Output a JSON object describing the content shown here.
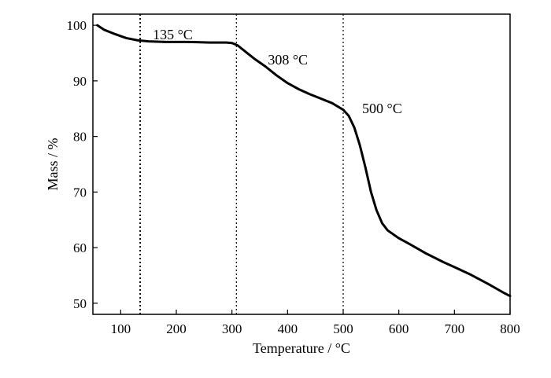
{
  "chart_data": {
    "type": "line",
    "title": "",
    "xlabel": "Temperature / °C",
    "ylabel": "Mass / %",
    "xlim": [
      50,
      800
    ],
    "ylim": [
      48,
      102
    ],
    "xticks": [
      100,
      200,
      300,
      400,
      500,
      600,
      700,
      800
    ],
    "yticks": [
      50,
      60,
      70,
      80,
      90,
      100
    ],
    "grid": false,
    "legend": "none",
    "series": [
      {
        "color": "#000000",
        "x": [
          58,
          70,
          90,
          110,
          130,
          150,
          180,
          220,
          260,
          290,
          300,
          310,
          320,
          340,
          360,
          380,
          400,
          420,
          440,
          460,
          480,
          500,
          510,
          520,
          530,
          540,
          550,
          560,
          570,
          580,
          600,
          620,
          650,
          680,
          700,
          730,
          760,
          790,
          800
        ],
        "y": [
          100.0,
          99.2,
          98.4,
          97.7,
          97.3,
          97.1,
          97.0,
          97.0,
          96.9,
          96.9,
          96.8,
          96.4,
          95.6,
          94.0,
          92.6,
          91.0,
          89.6,
          88.5,
          87.6,
          86.8,
          86.0,
          84.8,
          83.7,
          81.6,
          78.4,
          74.4,
          70.0,
          66.7,
          64.4,
          63.1,
          61.7,
          60.6,
          58.9,
          57.4,
          56.5,
          55.1,
          53.5,
          51.8,
          51.3
        ]
      }
    ],
    "annotations": [
      {
        "x": 135,
        "label": "135 °C"
      },
      {
        "x": 308,
        "label": "308 °C"
      },
      {
        "x": 500,
        "label": "500 °C"
      }
    ]
  }
}
